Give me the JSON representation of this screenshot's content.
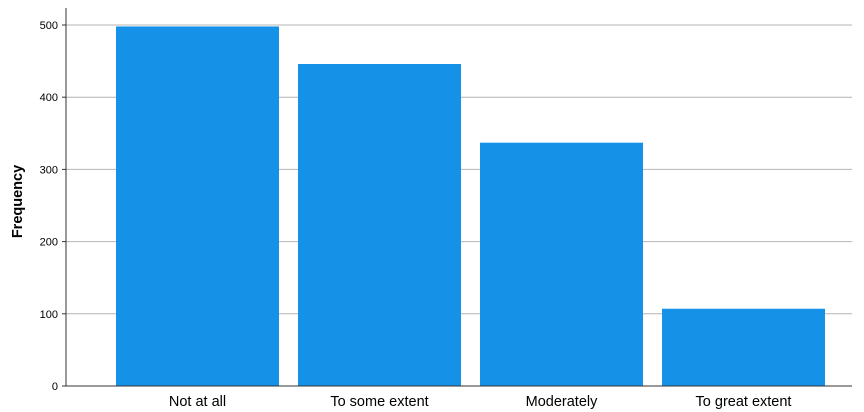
{
  "chart_data": {
    "type": "bar",
    "categories": [
      "Not at all",
      "To some extent",
      "Moderately",
      "To great extent"
    ],
    "values": [
      498,
      446,
      337,
      107
    ],
    "title": "",
    "xlabel": "",
    "ylabel": "Frequency",
    "ylim": [
      0,
      500
    ],
    "yticks": [
      "0",
      "100",
      "200",
      "300",
      "400",
      "500"
    ],
    "grid": "horizontal",
    "legend": "none",
    "colors": {
      "bar": "#1591e8",
      "grid": "#b4b4b4",
      "axis": "#333333"
    }
  }
}
